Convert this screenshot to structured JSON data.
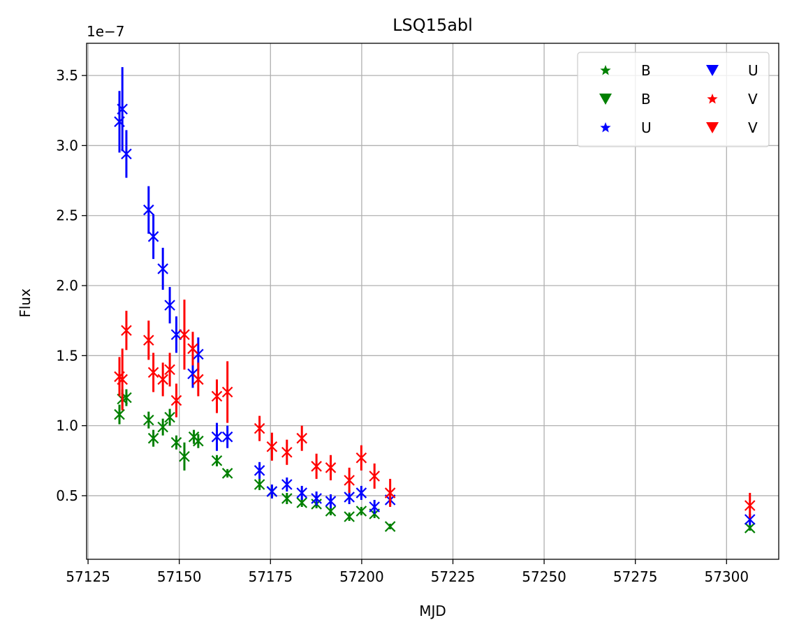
{
  "chart_data": {
    "type": "scatter",
    "title": "LSQ15abl",
    "xlabel": "MJD",
    "ylabel": "Flux",
    "offset_label": "1e−7",
    "xlim": [
      57124.6,
      57314.3
    ],
    "ylim": [
      0.046,
      3.73
    ],
    "xticks": [
      57125,
      57150,
      57175,
      57200,
      57225,
      57250,
      57275,
      57300
    ],
    "yticks": [
      0.5,
      1.0,
      1.5,
      2.0,
      2.5,
      3.0,
      3.5
    ],
    "ytick_labels": [
      "0.5",
      "1.0",
      "1.5",
      "2.0",
      "2.5",
      "3.0",
      "3.5"
    ],
    "grid": true,
    "legend": {
      "placement": "top-right",
      "columns": 2,
      "entries": [
        {
          "label": "B",
          "marker": "star",
          "color": "#008000"
        },
        {
          "label": "B",
          "marker": "triangle-down",
          "color": "#008000"
        },
        {
          "label": "U",
          "marker": "star",
          "color": "#0000ff"
        },
        {
          "label": "U",
          "marker": "triangle-down",
          "color": "#0000ff"
        },
        {
          "label": "V",
          "marker": "star",
          "color": "#ff0000"
        },
        {
          "label": "V",
          "marker": "triangle-down",
          "color": "#ff0000"
        }
      ]
    },
    "series": [
      {
        "name": "B",
        "color": "#008000",
        "marker": "x",
        "points": [
          {
            "x": 57133.6,
            "y": 1.08,
            "err": 0.07
          },
          {
            "x": 57134.4,
            "y": 1.19,
            "err": 0.07
          },
          {
            "x": 57135.5,
            "y": 1.2,
            "err": 0.06
          },
          {
            "x": 57141.6,
            "y": 1.04,
            "err": 0.06
          },
          {
            "x": 57142.9,
            "y": 0.91,
            "err": 0.06
          },
          {
            "x": 57145.5,
            "y": 0.99,
            "err": 0.06
          },
          {
            "x": 57147.4,
            "y": 1.06,
            "err": 0.06
          },
          {
            "x": 57149.2,
            "y": 0.88,
            "err": 0.05
          },
          {
            "x": 57151.4,
            "y": 0.78,
            "err": 0.1
          },
          {
            "x": 57154.0,
            "y": 0.92,
            "err": 0.05
          },
          {
            "x": 57155.2,
            "y": 0.89,
            "err": 0.05
          },
          {
            "x": 57160.3,
            "y": 0.75,
            "err": 0.04
          },
          {
            "x": 57163.2,
            "y": 0.66,
            "err": 0.03
          },
          {
            "x": 57172.0,
            "y": 0.58,
            "err": 0.04
          },
          {
            "x": 57175.4,
            "y": 0.53,
            "err": 0.04
          },
          {
            "x": 57179.5,
            "y": 0.48,
            "err": 0.04
          },
          {
            "x": 57183.6,
            "y": 0.45,
            "err": 0.03
          },
          {
            "x": 57187.6,
            "y": 0.44,
            "err": 0.03
          },
          {
            "x": 57191.5,
            "y": 0.39,
            "err": 0.03
          },
          {
            "x": 57196.6,
            "y": 0.35,
            "err": 0.03
          },
          {
            "x": 57199.9,
            "y": 0.39,
            "err": 0.03
          },
          {
            "x": 57203.5,
            "y": 0.37,
            "err": 0.03
          },
          {
            "x": 57207.8,
            "y": 0.28,
            "err": 0.02
          },
          {
            "x": 57306.4,
            "y": 0.27,
            "err": 0.02
          }
        ]
      },
      {
        "name": "U",
        "color": "#0000ff",
        "marker": "x",
        "points": [
          {
            "x": 57133.6,
            "y": 3.17,
            "err": 0.22
          },
          {
            "x": 57134.4,
            "y": 3.26,
            "err": 0.3
          },
          {
            "x": 57135.5,
            "y": 2.94,
            "err": 0.17
          },
          {
            "x": 57141.6,
            "y": 2.54,
            "err": 0.17
          },
          {
            "x": 57142.9,
            "y": 2.35,
            "err": 0.16
          },
          {
            "x": 57145.5,
            "y": 2.12,
            "err": 0.15
          },
          {
            "x": 57147.4,
            "y": 1.86,
            "err": 0.13
          },
          {
            "x": 57149.2,
            "y": 1.65,
            "err": 0.13
          },
          {
            "x": 57153.7,
            "y": 1.37,
            "err": 0.1
          },
          {
            "x": 57155.2,
            "y": 1.51,
            "err": 0.12
          },
          {
            "x": 57160.3,
            "y": 0.92,
            "err": 0.1
          },
          {
            "x": 57163.2,
            "y": 0.92,
            "err": 0.08
          },
          {
            "x": 57172.0,
            "y": 0.68,
            "err": 0.06
          },
          {
            "x": 57175.4,
            "y": 0.53,
            "err": 0.05
          },
          {
            "x": 57179.5,
            "y": 0.58,
            "err": 0.05
          },
          {
            "x": 57183.6,
            "y": 0.52,
            "err": 0.05
          },
          {
            "x": 57187.6,
            "y": 0.48,
            "err": 0.05
          },
          {
            "x": 57191.5,
            "y": 0.46,
            "err": 0.05
          },
          {
            "x": 57196.6,
            "y": 0.49,
            "err": 0.05
          },
          {
            "x": 57199.9,
            "y": 0.52,
            "err": 0.05
          },
          {
            "x": 57203.5,
            "y": 0.42,
            "err": 0.05
          },
          {
            "x": 57207.8,
            "y": 0.47,
            "err": 0.04
          },
          {
            "x": 57306.4,
            "y": 0.33,
            "err": 0.04
          }
        ]
      },
      {
        "name": "V",
        "color": "#ff0000",
        "marker": "x",
        "points": [
          {
            "x": 57133.6,
            "y": 1.35,
            "err": 0.14
          },
          {
            "x": 57134.4,
            "y": 1.33,
            "err": 0.22
          },
          {
            "x": 57135.5,
            "y": 1.68,
            "err": 0.14
          },
          {
            "x": 57141.6,
            "y": 1.61,
            "err": 0.14
          },
          {
            "x": 57142.9,
            "y": 1.38,
            "err": 0.14
          },
          {
            "x": 57145.5,
            "y": 1.33,
            "err": 0.12
          },
          {
            "x": 57147.4,
            "y": 1.4,
            "err": 0.12
          },
          {
            "x": 57149.2,
            "y": 1.18,
            "err": 0.12
          },
          {
            "x": 57151.4,
            "y": 1.65,
            "err": 0.25
          },
          {
            "x": 57153.7,
            "y": 1.55,
            "err": 0.12
          },
          {
            "x": 57155.2,
            "y": 1.33,
            "err": 0.12
          },
          {
            "x": 57160.3,
            "y": 1.21,
            "err": 0.12
          },
          {
            "x": 57163.2,
            "y": 1.24,
            "err": 0.22
          },
          {
            "x": 57172.0,
            "y": 0.98,
            "err": 0.09
          },
          {
            "x": 57175.4,
            "y": 0.85,
            "err": 0.1
          },
          {
            "x": 57179.5,
            "y": 0.81,
            "err": 0.09
          },
          {
            "x": 57183.6,
            "y": 0.91,
            "err": 0.09
          },
          {
            "x": 57187.6,
            "y": 0.71,
            "err": 0.09
          },
          {
            "x": 57191.5,
            "y": 0.7,
            "err": 0.09
          },
          {
            "x": 57196.6,
            "y": 0.61,
            "err": 0.09
          },
          {
            "x": 57199.9,
            "y": 0.77,
            "err": 0.09
          },
          {
            "x": 57203.5,
            "y": 0.64,
            "err": 0.09
          },
          {
            "x": 57207.8,
            "y": 0.52,
            "err": 0.1
          },
          {
            "x": 57306.4,
            "y": 0.43,
            "err": 0.09
          }
        ]
      }
    ]
  }
}
